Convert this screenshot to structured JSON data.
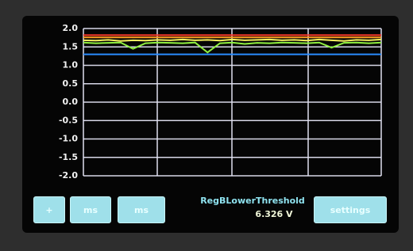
{
  "chart_data": {
    "type": "line",
    "ylim": [
      -2,
      2
    ],
    "yticks": [
      {
        "value": 2,
        "label": "2.0"
      },
      {
        "value": 1.5,
        "label": "1.5"
      },
      {
        "value": 1,
        "label": "1.0"
      },
      {
        "value": 0.5,
        "label": "0.5"
      },
      {
        "value": 0,
        "label": "0.0"
      },
      {
        "value": -0.5,
        "label": "-0.5"
      },
      {
        "value": -1,
        "label": "-1.0"
      },
      {
        "value": -1.5,
        "label": "-1.5"
      },
      {
        "value": -2,
        "label": "-2.0"
      }
    ],
    "grid": true,
    "series": [
      {
        "color": "#ff3a2a",
        "values": [
          1.82,
          1.82,
          1.82,
          1.82,
          1.82,
          1.82,
          1.82,
          1.82,
          1.82,
          1.82,
          1.82,
          1.82,
          1.82,
          1.82,
          1.82,
          1.82,
          1.82,
          1.82,
          1.82,
          1.82,
          1.82,
          1.82,
          1.82,
          1.82,
          1.82
        ]
      },
      {
        "color": "#ffa020",
        "values": [
          1.76,
          1.76,
          1.76,
          1.76,
          1.76,
          1.76,
          1.76,
          1.76,
          1.76,
          1.76,
          1.76,
          1.76,
          1.76,
          1.76,
          1.76,
          1.76,
          1.76,
          1.76,
          1.76,
          1.76,
          1.76,
          1.76,
          1.76,
          1.76,
          1.76
        ]
      },
      {
        "color": "#f5f060",
        "values": [
          1.68,
          1.67,
          1.69,
          1.66,
          1.68,
          1.67,
          1.69,
          1.68,
          1.7,
          1.68,
          1.69,
          1.67,
          1.7,
          1.68,
          1.69,
          1.7,
          1.68,
          1.69,
          1.67,
          1.7,
          1.68,
          1.66,
          1.69,
          1.68,
          1.7
        ]
      },
      {
        "color": "#90f040",
        "values": [
          1.62,
          1.6,
          1.61,
          1.62,
          1.45,
          1.6,
          1.62,
          1.61,
          1.6,
          1.62,
          1.35,
          1.6,
          1.62,
          1.58,
          1.61,
          1.6,
          1.62,
          1.61,
          1.6,
          1.62,
          1.48,
          1.61,
          1.62,
          1.6,
          1.62
        ]
      },
      {
        "color": "#2a8cff",
        "values": [
          1.3,
          1.3,
          1.3,
          1.3,
          1.3,
          1.3,
          1.3,
          1.3,
          1.3,
          1.3,
          1.3,
          1.3,
          1.3,
          1.3,
          1.3,
          1.3,
          1.3,
          1.3,
          1.3,
          1.3,
          1.3,
          1.3,
          1.3,
          1.3,
          1.3
        ]
      }
    ]
  },
  "controls": {
    "buttons": [
      "+",
      "ms",
      "ms",
      "settings"
    ],
    "parameter": "RegBLowerThreshold",
    "reading": "6.326 V"
  }
}
